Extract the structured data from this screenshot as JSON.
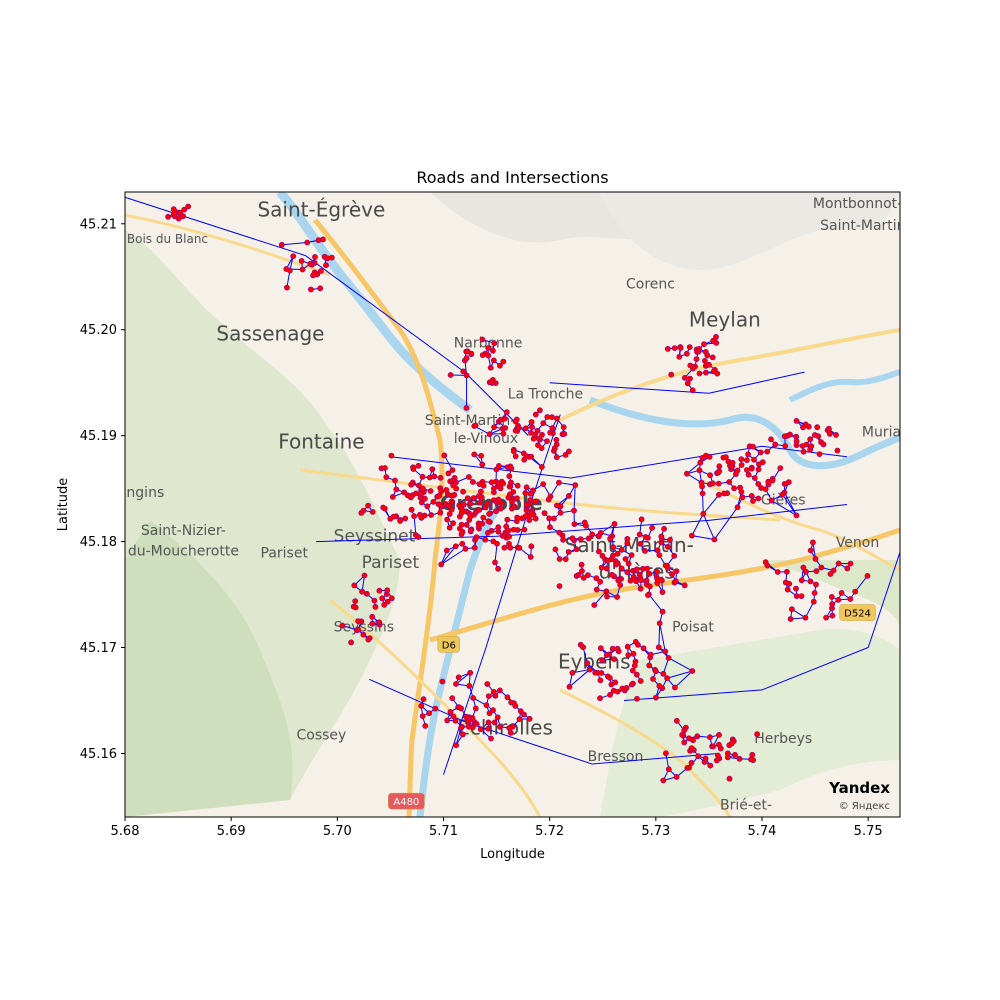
{
  "chart_data": {
    "type": "scatter",
    "title": "Roads and Intersections",
    "xlabel": "Longitude",
    "ylabel": "Latitude",
    "xlim": [
      5.68,
      5.753
    ],
    "ylim": [
      45.154,
      45.213
    ],
    "xticks": [
      "5.68",
      "5.69",
      "5.70",
      "5.71",
      "5.72",
      "5.73",
      "5.74",
      "5.75"
    ],
    "xtick_values": [
      5.68,
      5.69,
      5.7,
      5.71,
      5.72,
      5.73,
      5.74,
      5.75
    ],
    "yticks": [
      "45.16",
      "45.17",
      "45.18",
      "45.19",
      "45.20",
      "45.21"
    ],
    "ytick_values": [
      45.16,
      45.17,
      45.18,
      45.19,
      45.2,
      45.21
    ],
    "grid": false,
    "edge_color": "#0000ff",
    "node_color": "#ff0000",
    "node_edge_color": "#8b008b",
    "basemap": {
      "attribution": "Yandex",
      "attribution_sub": "© Яндекс",
      "labels": [
        {
          "text": "Saint-Égrève",
          "lon": 5.6985,
          "lat": 45.2107,
          "size": "big"
        },
        {
          "text": "Sassenage",
          "lon": 5.6937,
          "lat": 45.199,
          "size": "big"
        },
        {
          "text": "Fontaine",
          "lon": 5.6985,
          "lat": 45.1888,
          "size": "big"
        },
        {
          "text": "Grenoble",
          "lon": 5.7145,
          "lat": 45.183,
          "size": "big"
        },
        {
          "text": "Meylan",
          "lon": 5.7365,
          "lat": 45.2003,
          "size": "big"
        },
        {
          "text": "Eybens",
          "lon": 5.7242,
          "lat": 45.168,
          "size": "big"
        },
        {
          "text": "Échirolles",
          "lon": 5.7158,
          "lat": 45.1618,
          "size": "big"
        },
        {
          "text": "Saint-Martin-",
          "lon": 5.7275,
          "lat": 45.179,
          "size": "big"
        },
        {
          "text": "d'Hères",
          "lon": 5.7282,
          "lat": 45.1765,
          "size": "big"
        },
        {
          "text": "Seyssinet",
          "lon": 5.7035,
          "lat": 45.18,
          "size": "mid"
        },
        {
          "text": "Pariset",
          "lon": 5.705,
          "lat": 45.1775,
          "size": "mid"
        },
        {
          "text": "Corenc",
          "lon": 5.7295,
          "lat": 45.2039,
          "size": "small"
        },
        {
          "text": "La Tronche",
          "lon": 5.7196,
          "lat": 45.1935,
          "size": "small"
        },
        {
          "text": "Narbonne",
          "lon": 5.7142,
          "lat": 45.1983,
          "size": "small"
        },
        {
          "text": "Saint-Martin-",
          "lon": 5.7125,
          "lat": 45.191,
          "size": "small"
        },
        {
          "text": "le-Vinoux",
          "lon": 5.714,
          "lat": 45.1893,
          "size": "small"
        },
        {
          "text": "Montbonnot-",
          "lon": 5.749,
          "lat": 45.2115,
          "size": "small"
        },
        {
          "text": "Saint-Martin",
          "lon": 5.7495,
          "lat": 45.2094,
          "size": "small"
        },
        {
          "text": "Murianette",
          "lon": 5.753,
          "lat": 45.1899,
          "size": "small"
        },
        {
          "text": "Gières",
          "lon": 5.742,
          "lat": 45.1835,
          "size": "small"
        },
        {
          "text": "Venon",
          "lon": 5.749,
          "lat": 45.1795,
          "size": "small"
        },
        {
          "text": "Poisat",
          "lon": 5.7335,
          "lat": 45.1715,
          "size": "small"
        },
        {
          "text": "Herbeys",
          "lon": 5.742,
          "lat": 45.161,
          "size": "small"
        },
        {
          "text": "Bresson",
          "lon": 5.7262,
          "lat": 45.1593,
          "size": "small"
        },
        {
          "text": "Brié-et-",
          "lon": 5.7385,
          "lat": 45.1547,
          "size": "small"
        },
        {
          "text": "Seyssins",
          "lon": 5.7025,
          "lat": 45.1715,
          "size": "small"
        },
        {
          "text": "Cossey",
          "lon": 5.6985,
          "lat": 45.1613,
          "size": "small"
        },
        {
          "text": "Pariset",
          "lon": 5.695,
          "lat": 45.1785,
          "size": "small"
        },
        {
          "text": "Saint-Nizier-",
          "lon": 5.6855,
          "lat": 45.1806,
          "size": "small"
        },
        {
          "text": "du-Moucherotte",
          "lon": 5.6855,
          "lat": 45.1787,
          "size": "small"
        },
        {
          "text": "Engins",
          "lon": 5.6815,
          "lat": 45.1842,
          "size": "small"
        },
        {
          "text": "Bois du Blanc",
          "lon": 5.684,
          "lat": 45.2082,
          "size": "tiny"
        }
      ],
      "road_badges": [
        {
          "text": "D6",
          "lon": 5.7105,
          "lat": 45.1703,
          "color": "#f0c75a"
        },
        {
          "text": "D524",
          "lon": 5.749,
          "lat": 45.1733,
          "color": "#f0c75a"
        },
        {
          "text": "A480",
          "lon": 5.7065,
          "lat": 45.1555,
          "color": "#e8595d"
        }
      ]
    }
  }
}
